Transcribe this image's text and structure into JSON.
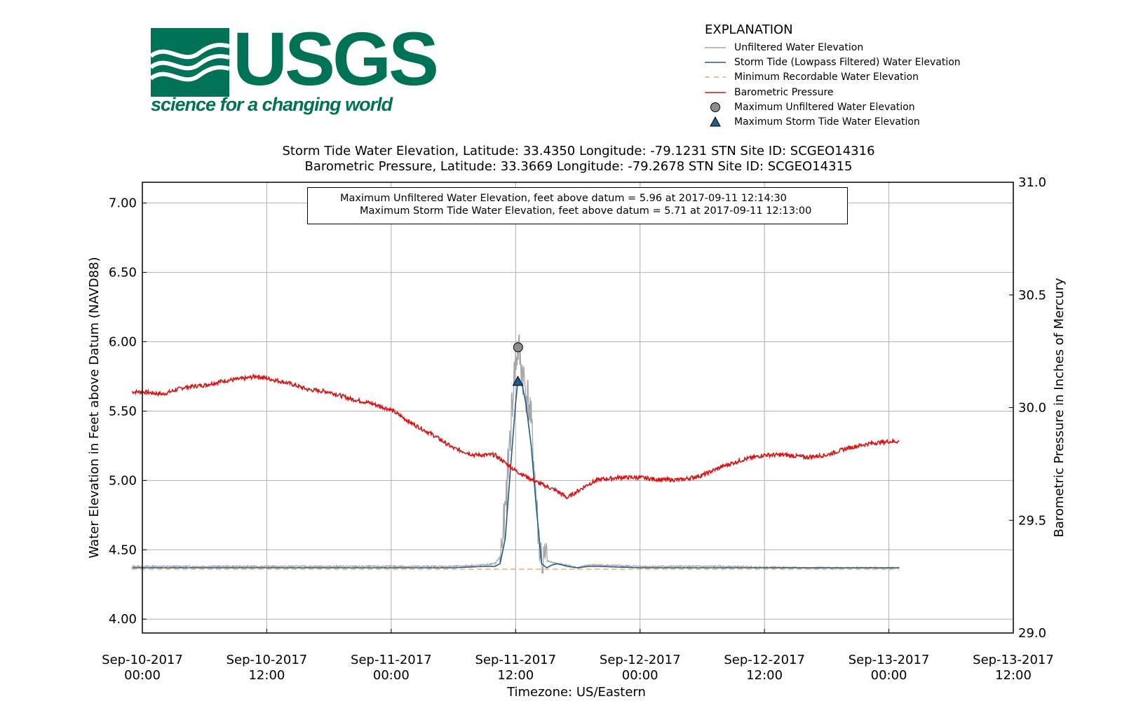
{
  "logo": {
    "word": "USGS",
    "tagline": "science for a changing world",
    "color": "#007256"
  },
  "legend": {
    "title": "EXPLANATION",
    "items": [
      {
        "label": "Unfiltered Water Elevation",
        "symbol": "line",
        "color": "#a6a6a6"
      },
      {
        "label": "Storm Tide (Lowpass Filtered) Water Elevation",
        "symbol": "line",
        "color": "#1f5b8c"
      },
      {
        "label": "Minimum Recordable Water Elevation",
        "symbol": "dashed",
        "color": "#f0a860"
      },
      {
        "label": "Barometric Pressure",
        "symbol": "line",
        "color": "#dd1111"
      },
      {
        "label": "Maximum Unfiltered Water Elevation",
        "symbol": "circle",
        "color": "#8c8c8c"
      },
      {
        "label": "Maximum Storm Tide Water Elevation",
        "symbol": "triangle",
        "color": "#1f5b8c"
      }
    ]
  },
  "chart_data": {
    "type": "line",
    "title_line1": "Storm Tide Water Elevation, Latitude: 33.4350 Longitude: -79.1231 STN Site ID: SCGEO14316",
    "title_line2": "Barometric Pressure, Latitude: 33.3669 Longitude: -79.2678 STN Site ID: SCGEO14315",
    "xlabel": "Timezone: US/Eastern",
    "ylabel": "Water Elevation in Feet above Datum (NAVD88)",
    "y2label": "Barometric Pressure in Inches of Mercury",
    "xlim": [
      "2017-09-10 00:00",
      "2017-09-13 12:00"
    ],
    "ylim": [
      3.9,
      7.15
    ],
    "y2lim": [
      29.0,
      31.0
    ],
    "grid": true,
    "legend_position": "top-right outside plot",
    "x_ticks": [
      {
        "date": "Sep-10-2017",
        "time": "00:00",
        "hours": 0
      },
      {
        "date": "Sep-10-2017",
        "time": "12:00",
        "hours": 12
      },
      {
        "date": "Sep-11-2017",
        "time": "00:00",
        "hours": 24
      },
      {
        "date": "Sep-11-2017",
        "time": "12:00",
        "hours": 36
      },
      {
        "date": "Sep-12-2017",
        "time": "00:00",
        "hours": 48
      },
      {
        "date": "Sep-12-2017",
        "time": "12:00",
        "hours": 60
      },
      {
        "date": "Sep-13-2017",
        "time": "00:00",
        "hours": 72
      },
      {
        "date": "Sep-13-2017",
        "time": "12:00",
        "hours": 84
      }
    ],
    "y_ticks": [
      "4.00",
      "4.50",
      "5.00",
      "5.50",
      "6.00",
      "6.50",
      "7.00"
    ],
    "y2_ticks": [
      "29.0",
      "29.5",
      "30.0",
      "30.5",
      "31.0"
    ],
    "annotation": {
      "line1": "Maximum Unfiltered Water Elevation, feet above datum = 5.96 at 2017-09-11 12:14:30",
      "line2": "Maximum Storm Tide Water Elevation, feet above datum = 5.71 at 2017-09-11 12:13:00"
    },
    "min_recordable_elevation": 4.36,
    "max_unfiltered": {
      "x": 36.24,
      "y": 5.96
    },
    "max_storm_tide": {
      "x": 36.22,
      "y": 5.71
    },
    "series": [
      {
        "name": "Barometric Pressure",
        "axis": "right",
        "color": "#dd1111",
        "x": [
          -1,
          0,
          2,
          4,
          6,
          8,
          10,
          11,
          12,
          14,
          16,
          18,
          20,
          22,
          24,
          26,
          28,
          30,
          32,
          34,
          36,
          38,
          40,
          41,
          42,
          43,
          44,
          46,
          48,
          50,
          52,
          54,
          56,
          58,
          60,
          62,
          64,
          66,
          68,
          70,
          72,
          73
        ],
        "values": [
          30.07,
          30.07,
          30.06,
          30.09,
          30.1,
          30.12,
          30.13,
          30.14,
          30.13,
          30.11,
          30.08,
          30.07,
          30.04,
          30.02,
          29.99,
          29.93,
          29.88,
          29.82,
          29.79,
          29.79,
          29.72,
          29.67,
          29.63,
          29.6,
          29.63,
          29.66,
          29.68,
          29.69,
          29.69,
          29.68,
          29.68,
          29.7,
          29.74,
          29.77,
          29.79,
          29.79,
          29.78,
          29.79,
          29.82,
          29.84,
          29.85,
          29.85
        ]
      },
      {
        "name": "Storm Tide (Lowpass Filtered) Water Elevation",
        "axis": "left",
        "color": "#1f5b8c",
        "x": [
          -1,
          10,
          20,
          30,
          33,
          34,
          34.5,
          35,
          35.5,
          36,
          36.2,
          36.6,
          37,
          37.5,
          38,
          38.5,
          39,
          39.5,
          40,
          41,
          42,
          43,
          44,
          48,
          56,
          64,
          72,
          73
        ],
        "values": [
          4.37,
          4.37,
          4.37,
          4.37,
          4.38,
          4.38,
          4.4,
          4.58,
          5.08,
          5.56,
          5.71,
          5.7,
          5.55,
          5.25,
          4.8,
          4.4,
          4.37,
          4.39,
          4.4,
          4.38,
          4.37,
          4.38,
          4.38,
          4.37,
          4.37,
          4.37,
          4.37,
          4.37
        ]
      },
      {
        "name": "Unfiltered Water Elevation",
        "axis": "left",
        "color": "#a6a6a6",
        "x": [
          -1,
          10,
          20,
          30,
          33,
          34,
          34.5,
          35,
          35.4,
          35.8,
          36,
          36.24,
          36.6,
          37,
          37.4,
          37.8,
          38.2,
          38.6,
          39,
          40,
          41,
          42,
          43,
          44,
          48,
          56,
          64,
          72,
          73
        ],
        "values": [
          4.38,
          4.38,
          4.38,
          4.38,
          4.39,
          4.4,
          4.45,
          4.75,
          5.25,
          5.7,
          5.85,
          5.96,
          5.8,
          5.65,
          5.5,
          5.1,
          4.6,
          4.4,
          4.42,
          4.4,
          4.39,
          4.37,
          4.39,
          4.39,
          4.38,
          4.38,
          4.37,
          4.37,
          4.37
        ]
      }
    ]
  }
}
